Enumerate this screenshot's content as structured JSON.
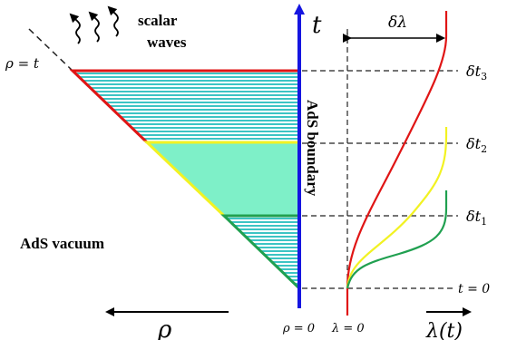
{
  "labels": {
    "t_axis": "t",
    "rho_eq_t": "ρ = t",
    "scalar": "scalar",
    "waves": "waves",
    "ads_boundary": "AdS boundary",
    "ads_vacuum": "AdS vacuum",
    "rho_axis": "ρ",
    "rho_zero": "ρ = 0",
    "lambda_zero": "λ = 0",
    "lambda_t": "λ(t)",
    "delta_lambda": "δλ",
    "dt3": "δt",
    "dt3_sub": "3",
    "dt2": "δt",
    "dt2_sub": "2",
    "dt1": "δt",
    "dt1_sub": "1",
    "t_zero": "t = 0"
  },
  "colors": {
    "boundary": "#1515e0",
    "red": "#e01515",
    "yellow": "#f2f222",
    "green": "#20a050",
    "fill_light": "#7ef0c8",
    "fill_teal": "#3cc4c4",
    "dash": "#222222"
  }
}
